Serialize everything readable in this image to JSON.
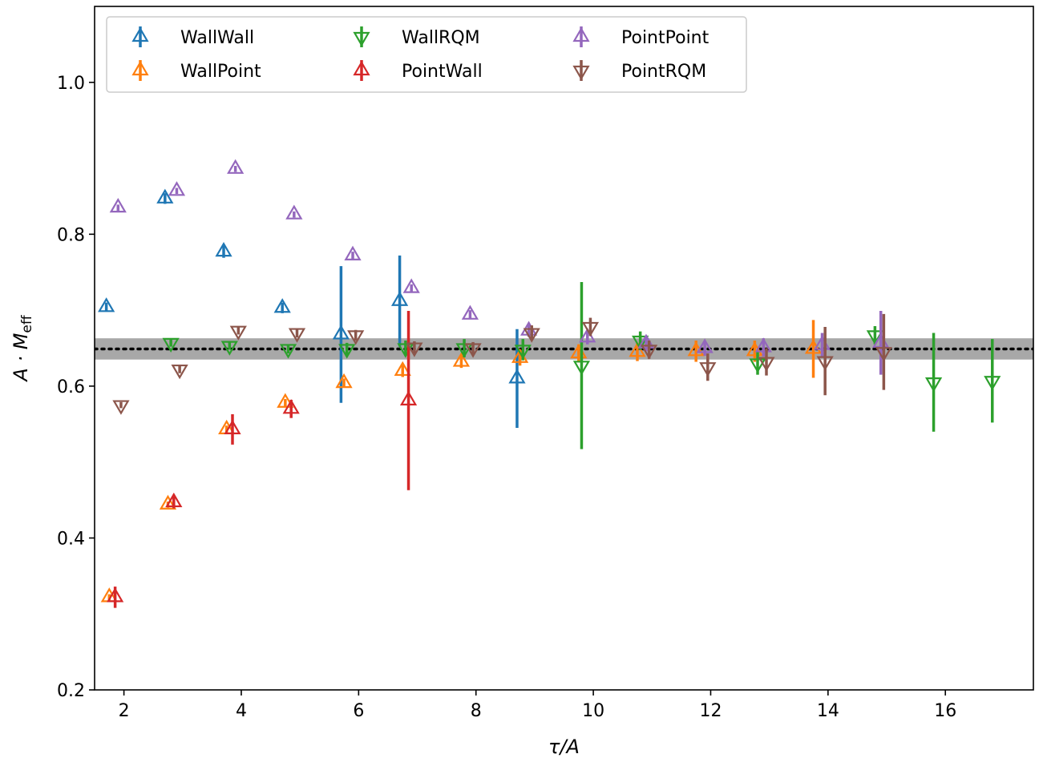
{
  "chart_data": {
    "type": "scatter",
    "xlabel": "τ/A",
    "ylabel_main": "A · M",
    "ylabel_sub": "eff",
    "xlim": [
      1.5,
      17.5
    ],
    "ylim": [
      0.2,
      1.1
    ],
    "xticks": [
      "2",
      "4",
      "6",
      "8",
      "10",
      "12",
      "14",
      "16"
    ],
    "yticks": [
      "0.2",
      "0.4",
      "0.6",
      "0.8",
      "1.0"
    ],
    "legend_position": "upper-left",
    "band": {
      "center": 0.649,
      "low": 0.635,
      "high": 0.663,
      "color": "#999999"
    },
    "series": [
      {
        "name": "WallWall",
        "color": "#1f77b4",
        "marker": "triangle-up",
        "points": [
          {
            "x": 1.7,
            "y": 0.704,
            "err": 0.006
          },
          {
            "x": 2.7,
            "y": 0.847,
            "err": 0.007
          },
          {
            "x": 3.7,
            "y": 0.777,
            "err": 0.008
          },
          {
            "x": 4.7,
            "y": 0.703,
            "err": 0.007
          },
          {
            "x": 5.7,
            "y": 0.668,
            "err": 0.09
          },
          {
            "x": 6.7,
            "y": 0.712,
            "err": 0.06
          },
          {
            "x": 8.7,
            "y": 0.61,
            "err": 0.065
          }
        ]
      },
      {
        "name": "WallPoint",
        "color": "#ff7f0e",
        "marker": "triangle-up",
        "points": [
          {
            "x": 1.75,
            "y": 0.322,
            "err": 0.004
          },
          {
            "x": 2.75,
            "y": 0.444,
            "err": 0.004
          },
          {
            "x": 3.75,
            "y": 0.543,
            "err": 0.005
          },
          {
            "x": 4.75,
            "y": 0.578,
            "err": 0.005
          },
          {
            "x": 5.75,
            "y": 0.604,
            "err": 0.006
          },
          {
            "x": 6.75,
            "y": 0.62,
            "err": 0.008
          },
          {
            "x": 7.75,
            "y": 0.632,
            "err": 0.008
          },
          {
            "x": 8.75,
            "y": 0.637,
            "err": 0.01
          },
          {
            "x": 9.75,
            "y": 0.643,
            "err": 0.012
          },
          {
            "x": 10.75,
            "y": 0.645,
            "err": 0.012
          },
          {
            "x": 11.75,
            "y": 0.646,
            "err": 0.014
          },
          {
            "x": 12.75,
            "y": 0.646,
            "err": 0.014
          },
          {
            "x": 13.75,
            "y": 0.649,
            "err": 0.038
          }
        ]
      },
      {
        "name": "WallRQM",
        "color": "#2ca02c",
        "marker": "triangle-down",
        "points": [
          {
            "x": 2.8,
            "y": 0.657,
            "err": 0.005
          },
          {
            "x": 3.8,
            "y": 0.653,
            "err": 0.005
          },
          {
            "x": 4.8,
            "y": 0.649,
            "err": 0.006
          },
          {
            "x": 5.8,
            "y": 0.649,
            "err": 0.008
          },
          {
            "x": 6.8,
            "y": 0.65,
            "err": 0.01
          },
          {
            "x": 7.8,
            "y": 0.65,
            "err": 0.012
          },
          {
            "x": 8.8,
            "y": 0.648,
            "err": 0.014
          },
          {
            "x": 9.8,
            "y": 0.627,
            "err": 0.11
          },
          {
            "x": 10.8,
            "y": 0.66,
            "err": 0.012
          },
          {
            "x": 12.8,
            "y": 0.63,
            "err": 0.015
          },
          {
            "x": 14.8,
            "y": 0.667,
            "err": 0.012
          },
          {
            "x": 15.8,
            "y": 0.605,
            "err": 0.065
          },
          {
            "x": 16.8,
            "y": 0.607,
            "err": 0.055
          }
        ]
      },
      {
        "name": "PointWall",
        "color": "#d62728",
        "marker": "triangle-up",
        "points": [
          {
            "x": 1.85,
            "y": 0.322,
            "err": 0.014
          },
          {
            "x": 2.85,
            "y": 0.447,
            "err": 0.008
          },
          {
            "x": 3.85,
            "y": 0.543,
            "err": 0.02
          },
          {
            "x": 4.85,
            "y": 0.57,
            "err": 0.012
          },
          {
            "x": 6.85,
            "y": 0.581,
            "err": 0.118
          }
        ]
      },
      {
        "name": "PointPoint",
        "color": "#9467bd",
        "marker": "triangle-up",
        "points": [
          {
            "x": 1.9,
            "y": 0.835,
            "err": 0.004
          },
          {
            "x": 2.9,
            "y": 0.857,
            "err": 0.004
          },
          {
            "x": 3.9,
            "y": 0.886,
            "err": 0.004
          },
          {
            "x": 4.9,
            "y": 0.826,
            "err": 0.004
          },
          {
            "x": 5.9,
            "y": 0.772,
            "err": 0.005
          },
          {
            "x": 6.9,
            "y": 0.729,
            "err": 0.005
          },
          {
            "x": 7.9,
            "y": 0.694,
            "err": 0.006
          },
          {
            "x": 8.9,
            "y": 0.673,
            "err": 0.008
          },
          {
            "x": 9.9,
            "y": 0.664,
            "err": 0.009
          },
          {
            "x": 10.9,
            "y": 0.656,
            "err": 0.01
          },
          {
            "x": 11.9,
            "y": 0.65,
            "err": 0.01
          },
          {
            "x": 12.9,
            "y": 0.651,
            "err": 0.012
          },
          {
            "x": 13.9,
            "y": 0.654,
            "err": 0.016
          },
          {
            "x": 14.9,
            "y": 0.657,
            "err": 0.042
          }
        ]
      },
      {
        "name": "PointRQM",
        "color": "#8c564b",
        "marker": "triangle-down",
        "points": [
          {
            "x": 1.95,
            "y": 0.575,
            "err": 0.004
          },
          {
            "x": 2.95,
            "y": 0.622,
            "err": 0.005
          },
          {
            "x": 3.95,
            "y": 0.673,
            "err": 0.005
          },
          {
            "x": 4.95,
            "y": 0.67,
            "err": 0.006
          },
          {
            "x": 5.95,
            "y": 0.667,
            "err": 0.007
          },
          {
            "x": 6.95,
            "y": 0.651,
            "err": 0.008
          },
          {
            "x": 7.95,
            "y": 0.65,
            "err": 0.008
          },
          {
            "x": 8.95,
            "y": 0.67,
            "err": 0.01
          },
          {
            "x": 9.95,
            "y": 0.678,
            "err": 0.012
          },
          {
            "x": 10.95,
            "y": 0.648,
            "err": 0.012
          },
          {
            "x": 11.95,
            "y": 0.625,
            "err": 0.018
          },
          {
            "x": 12.95,
            "y": 0.632,
            "err": 0.018
          },
          {
            "x": 13.95,
            "y": 0.633,
            "err": 0.045
          },
          {
            "x": 14.95,
            "y": 0.645,
            "err": 0.05
          }
        ]
      }
    ]
  }
}
